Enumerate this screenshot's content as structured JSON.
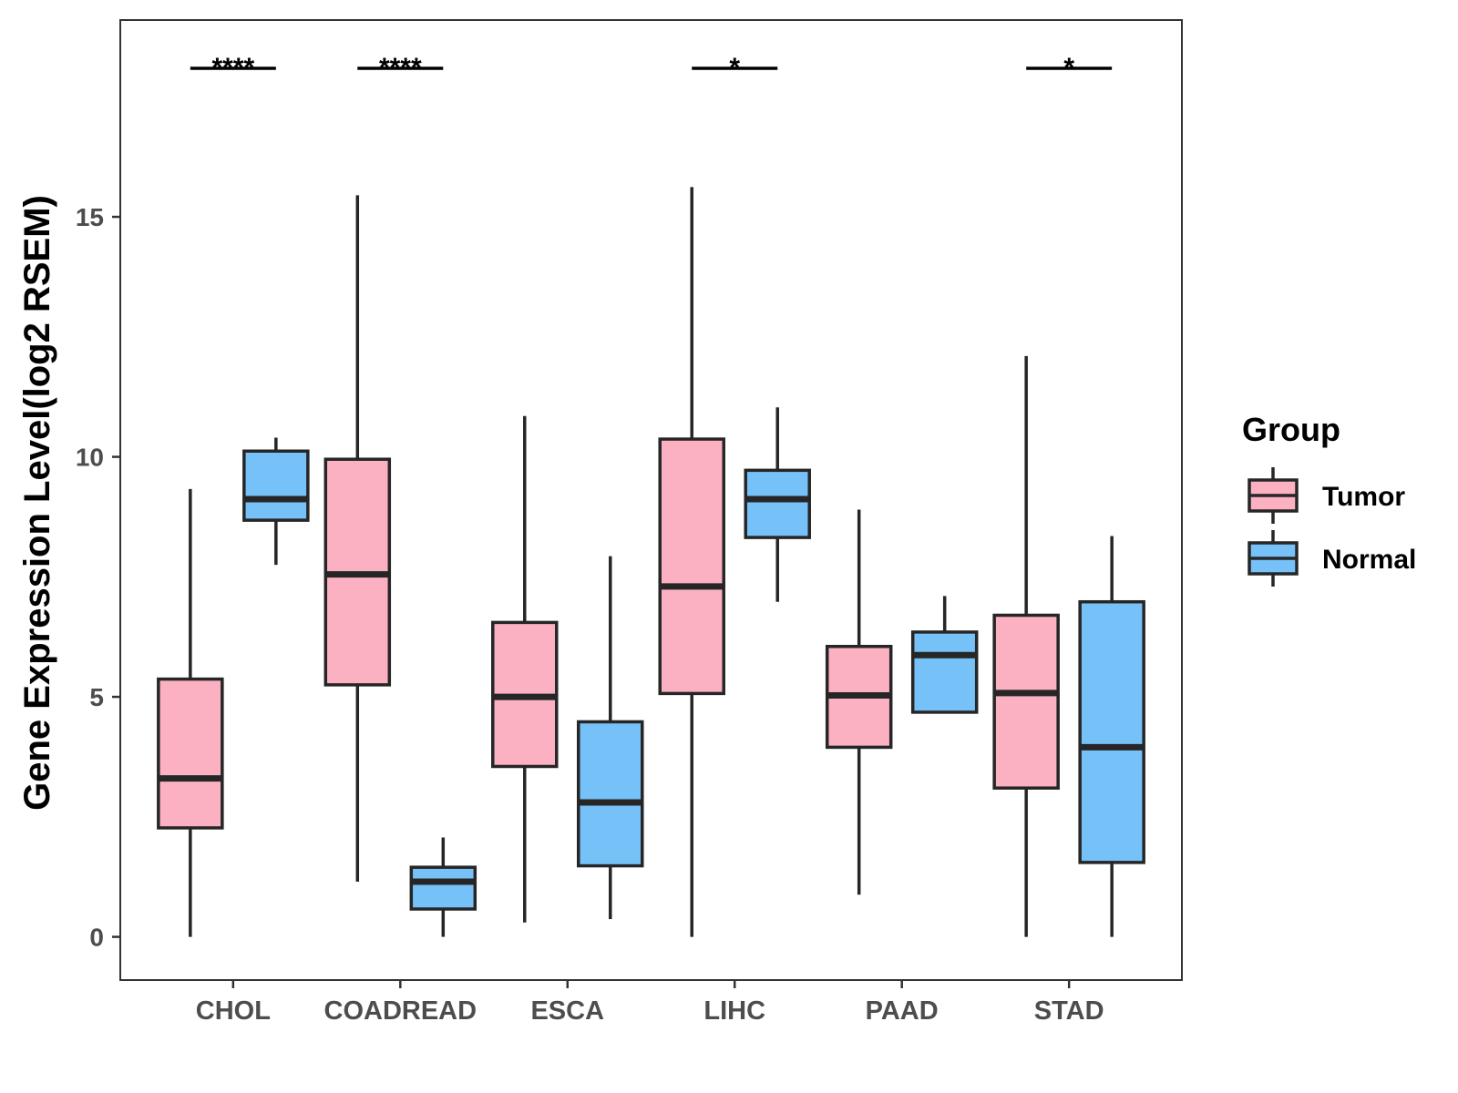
{
  "chart_data": {
    "type": "boxplot",
    "title": "",
    "xlabel": "",
    "ylabel": "Gene Expression Level(log2 RSEM)",
    "ylim": [
      -0.9,
      19.1
    ],
    "yticks": [
      0,
      5,
      10,
      15
    ],
    "ytick_labels": [
      "0",
      "5",
      "10",
      "15"
    ],
    "grid": false,
    "categories": [
      "CHOL",
      "COADREAD",
      "ESCA",
      "LIHC",
      "PAAD",
      "STAD"
    ],
    "legend": {
      "title": "Group",
      "position": "right",
      "items": [
        {
          "label": "Tumor",
          "color": "#FBB1C2"
        },
        {
          "label": "Normal",
          "color": "#76C1F8"
        }
      ]
    },
    "series": [
      {
        "name": "Tumor",
        "color": "#FBB1C2",
        "boxes": [
          {
            "min": 0.0,
            "q1": 2.27,
            "median": 3.3,
            "q3": 5.37,
            "max": 9.33
          },
          {
            "min": 1.15,
            "q1": 5.25,
            "median": 7.55,
            "q3": 9.95,
            "max": 15.45
          },
          {
            "min": 0.3,
            "q1": 3.55,
            "median": 5.0,
            "q3": 6.55,
            "max": 10.85
          },
          {
            "min": 0.0,
            "q1": 5.07,
            "median": 7.3,
            "q3": 10.37,
            "max": 15.62
          },
          {
            "min": 0.88,
            "q1": 3.95,
            "median": 5.03,
            "q3": 6.05,
            "max": 8.9
          },
          {
            "min": 0.0,
            "q1": 3.1,
            "median": 5.08,
            "q3": 6.7,
            "max": 12.1
          }
        ]
      },
      {
        "name": "Normal",
        "color": "#76C1F8",
        "boxes": [
          {
            "min": 7.75,
            "q1": 8.68,
            "median": 9.12,
            "q3": 10.12,
            "max": 10.4
          },
          {
            "min": 0.0,
            "q1": 0.58,
            "median": 1.15,
            "q3": 1.45,
            "max": 2.07
          },
          {
            "min": 0.37,
            "q1": 1.48,
            "median": 2.8,
            "q3": 4.48,
            "max": 7.93
          },
          {
            "min": 6.98,
            "q1": 8.32,
            "median": 9.12,
            "q3": 9.72,
            "max": 11.03
          },
          {
            "min": null,
            "q1": 4.68,
            "median": 5.87,
            "q3": 6.35,
            "max": 7.1
          },
          {
            "min": 0.0,
            "q1": 1.55,
            "median": 3.95,
            "q3": 6.98,
            "max": 8.35
          }
        ]
      }
    ],
    "significance": [
      "****",
      "****",
      "",
      "*",
      "",
      "*"
    ]
  }
}
